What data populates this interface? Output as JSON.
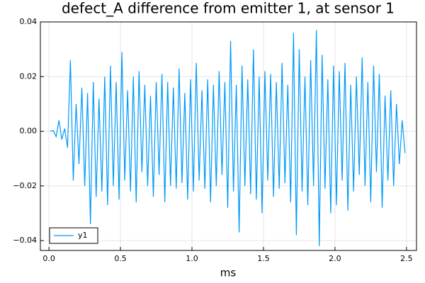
{
  "chart_data": {
    "type": "line",
    "title": "defect_A difference from emitter 1, at sensor 1",
    "x_label": "ms",
    "x": [
      0.01,
      0.03,
      0.05,
      0.07,
      0.09,
      0.11,
      0.13,
      0.15,
      0.17,
      0.19,
      0.21,
      0.23,
      0.25,
      0.27,
      0.29,
      0.31,
      0.33,
      0.35,
      0.37,
      0.39,
      0.41,
      0.43,
      0.45,
      0.47,
      0.49,
      0.51,
      0.53,
      0.55,
      0.57,
      0.59,
      0.61,
      0.63,
      0.65,
      0.67,
      0.69,
      0.71,
      0.73,
      0.75,
      0.77,
      0.79,
      0.81,
      0.83,
      0.85,
      0.87,
      0.89,
      0.91,
      0.93,
      0.95,
      0.97,
      0.99,
      1.01,
      1.03,
      1.05,
      1.07,
      1.09,
      1.11,
      1.13,
      1.15,
      1.17,
      1.19,
      1.21,
      1.23,
      1.25,
      1.27,
      1.29,
      1.31,
      1.33,
      1.35,
      1.37,
      1.39,
      1.41,
      1.43,
      1.45,
      1.47,
      1.49,
      1.51,
      1.53,
      1.55,
      1.57,
      1.59,
      1.61,
      1.63,
      1.65,
      1.67,
      1.69,
      1.71,
      1.73,
      1.75,
      1.77,
      1.79,
      1.81,
      1.83,
      1.85,
      1.87,
      1.89,
      1.91,
      1.93,
      1.95,
      1.97,
      1.99,
      2.01,
      2.03,
      2.05,
      2.07,
      2.09,
      2.11,
      2.13,
      2.15,
      2.17,
      2.19,
      2.21,
      2.23,
      2.25,
      2.27,
      2.29,
      2.31,
      2.33,
      2.35,
      2.37,
      2.39,
      2.41,
      2.43,
      2.45,
      2.47,
      2.49
    ],
    "series": [
      {
        "name": "y1",
        "color": "#009af9",
        "values": [
          0.0,
          0.0003,
          -0.002,
          0.004,
          -0.003,
          0.001,
          -0.006,
          0.026,
          -0.018,
          0.01,
          -0.012,
          0.016,
          -0.02,
          0.014,
          -0.034,
          0.018,
          -0.024,
          0.012,
          -0.022,
          0.02,
          -0.027,
          0.024,
          -0.02,
          0.018,
          -0.025,
          0.029,
          -0.018,
          0.015,
          -0.022,
          0.02,
          -0.026,
          0.022,
          -0.015,
          0.017,
          -0.02,
          0.013,
          -0.024,
          0.018,
          -0.016,
          0.021,
          -0.026,
          0.018,
          -0.02,
          0.016,
          -0.021,
          0.023,
          -0.019,
          0.014,
          -0.025,
          0.019,
          -0.022,
          0.025,
          -0.018,
          0.015,
          -0.021,
          0.019,
          -0.026,
          0.017,
          -0.02,
          0.022,
          -0.016,
          0.018,
          -0.028,
          0.033,
          -0.022,
          0.017,
          -0.037,
          0.024,
          -0.02,
          0.019,
          -0.023,
          0.03,
          -0.025,
          0.02,
          -0.03,
          0.022,
          -0.018,
          0.021,
          -0.024,
          0.018,
          -0.021,
          0.025,
          -0.019,
          0.017,
          -0.026,
          0.036,
          -0.038,
          0.03,
          -0.022,
          0.02,
          -0.027,
          0.026,
          -0.02,
          0.037,
          -0.042,
          0.028,
          -0.021,
          0.019,
          -0.03,
          0.024,
          -0.027,
          0.022,
          -0.018,
          0.025,
          -0.029,
          0.017,
          -0.022,
          0.02,
          -0.016,
          0.027,
          -0.02,
          0.018,
          -0.026,
          0.024,
          -0.015,
          0.021,
          -0.028,
          0.013,
          -0.018,
          0.015,
          -0.02,
          0.01,
          -0.012,
          0.004,
          -0.008
        ]
      }
    ],
    "xlim": [
      -0.06,
      2.57
    ],
    "xticks": [
      {
        "value": 0,
        "label": "0.0"
      },
      0.5,
      {
        "value": 1,
        "label": "1.0"
      },
      1.5,
      {
        "value": 2,
        "label": "2.0"
      },
      2.5
    ],
    "ylim": [
      -0.0436,
      0.04
    ],
    "yticks": [
      {
        "value": -0.04,
        "label": "−0.04"
      },
      {
        "value": -0.02,
        "label": "−0.02"
      },
      {
        "value": 0,
        "label": "0.00"
      },
      0.02,
      0.04
    ],
    "grid": true,
    "legend": "bottom-left"
  }
}
